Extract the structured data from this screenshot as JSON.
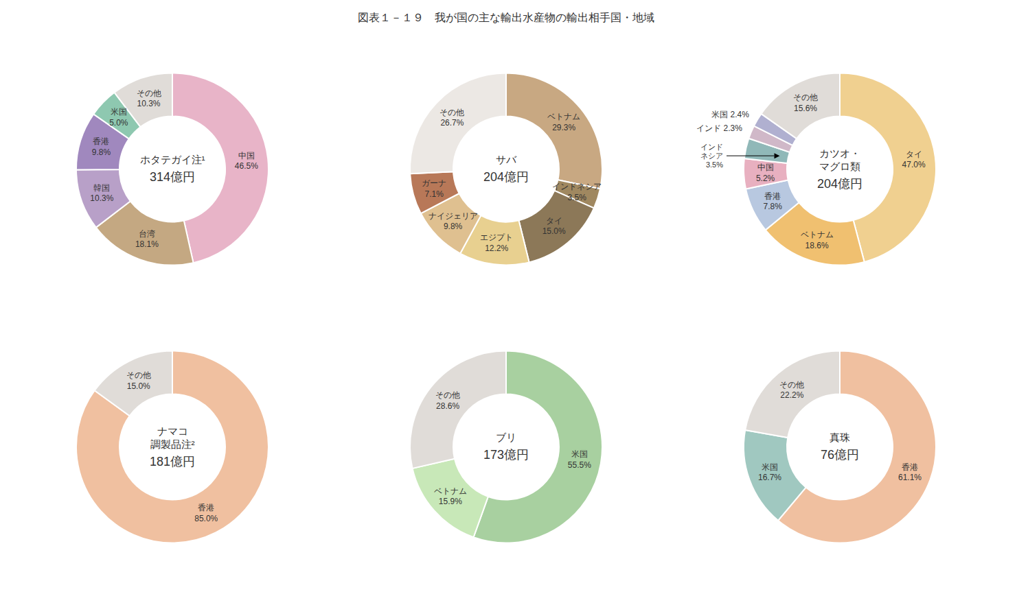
{
  "title": "図表１－１９　我が国の主な輸出水産物の輸出相手国・地域",
  "chart_data": [
    {
      "type": "pie",
      "title": "ホタテガイ注¹",
      "subtitle": "314億円",
      "categories": [
        "中国",
        "台湾",
        "韓国",
        "香港",
        "米国",
        "その他"
      ],
      "values": [
        46.5,
        18.1,
        10.3,
        9.8,
        5.0,
        10.3
      ],
      "value_labels": [
        "46.5%",
        "18.1%",
        "10.3%",
        "9.8%",
        "5.0%",
        "10.3%"
      ],
      "colors": [
        "#e8b4c8",
        "#c4a882",
        "#b8a0c8",
        "#a088be",
        "#8ec8b0",
        "#e0dcd8"
      ],
      "data_labels": true
    },
    {
      "type": "pie",
      "title": "サバ",
      "subtitle": "204億円",
      "categories": [
        "ベトナム",
        "インドネシア",
        "タイ",
        "エジプト",
        "ナイジェリア",
        "ガーナ",
        "その他"
      ],
      "values": [
        29.3,
        3.5,
        15.0,
        12.2,
        9.8,
        7.1,
        26.7
      ],
      "value_labels": [
        "29.3%",
        "3.5%",
        "15.0%",
        "12.2%",
        "9.8%",
        "7.1%",
        "26.7%"
      ],
      "colors": [
        "#c8a882",
        "#a08860",
        "#8c7858",
        "#e8d090",
        "#dfc090",
        "#b87858",
        "#ece8e4"
      ],
      "data_labels": true
    },
    {
      "type": "pie",
      "title": "カツオ・\nマグロ類",
      "subtitle": "204億円",
      "categories": [
        "タイ",
        "ベトナム",
        "香港",
        "中国",
        "インドネシア",
        "インド",
        "米国",
        "その他"
      ],
      "values": [
        47.0,
        18.6,
        7.8,
        5.2,
        3.5,
        2.3,
        2.4,
        15.6
      ],
      "value_labels": [
        "47.0%",
        "18.6%",
        "7.8%",
        "5.2%",
        null,
        "2.3%",
        "2.4%",
        "15.6%"
      ],
      "colors": [
        "#f0d090",
        "#f0c070",
        "#b8c8e0",
        "#e8b0c0",
        "#90b8b8",
        "#d0b8c8",
        "#b0b0d0",
        "#e0dcd8"
      ],
      "data_labels": true,
      "annotations": [
        {
          "text": "インド\nネシア\n3.5%",
          "category": "インドネシア"
        }
      ]
    },
    {
      "type": "pie",
      "title": "ナマコ\n調製品注²",
      "subtitle": "181億円",
      "categories": [
        "香港",
        "その他"
      ],
      "values": [
        85.0,
        15.0
      ],
      "value_labels": [
        "85.0%",
        "15.0%"
      ],
      "colors": [
        "#f0c0a0",
        "#e0dcd8"
      ],
      "data_labels": true
    },
    {
      "type": "pie",
      "title": "ブリ",
      "subtitle": "173億円",
      "categories": [
        "米国",
        "ベトナム",
        "その他"
      ],
      "values": [
        55.5,
        15.9,
        28.6
      ],
      "value_labels": [
        "55.5%",
        "15.9%",
        "28.6%"
      ],
      "colors": [
        "#a8d0a0",
        "#c8e8b8",
        "#e0dcd8"
      ],
      "data_labels": true
    },
    {
      "type": "pie",
      "title": "真珠",
      "subtitle": "76億円",
      "categories": [
        "香港",
        "米国",
        "その他"
      ],
      "values": [
        61.1,
        16.7,
        22.2
      ],
      "value_labels": [
        "61.1%",
        "16.7%",
        "22.2%"
      ],
      "colors": [
        "#f0c0a0",
        "#a0c8c0",
        "#e0dcd8"
      ],
      "data_labels": true
    }
  ]
}
